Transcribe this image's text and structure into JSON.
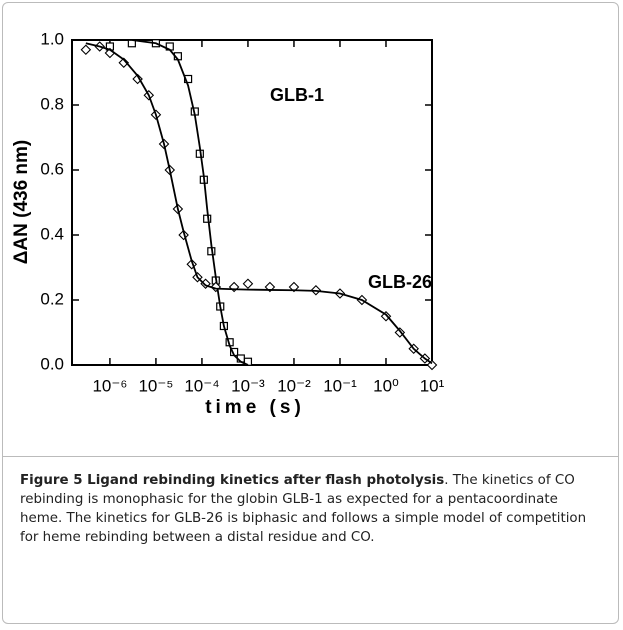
{
  "chart_data": {
    "type": "scatter",
    "xlabel": "time (s)",
    "ylabel": "ΔAN (436 nm)",
    "xscale": "log",
    "xlim": [
      1.5e-07,
      10
    ],
    "ylim": [
      0,
      1
    ],
    "xticks": [
      {
        "value": 1e-06,
        "label": "10⁻⁶"
      },
      {
        "value": 1e-05,
        "label": "10⁻⁵"
      },
      {
        "value": 0.0001,
        "label": "10⁻⁴"
      },
      {
        "value": 0.001,
        "label": "10⁻³"
      },
      {
        "value": 0.01,
        "label": "10⁻²"
      },
      {
        "value": 0.1,
        "label": "10⁻¹"
      },
      {
        "value": 1,
        "label": "10⁰"
      },
      {
        "value": 10,
        "label": "10¹"
      }
    ],
    "yticks": [
      {
        "value": 0,
        "label": "0.0"
      },
      0.2,
      0.4,
      0.6,
      0.8,
      {
        "value": 1,
        "label": "1.0"
      }
    ],
    "series": [
      {
        "name": "GLB-1",
        "marker": "square",
        "color": "#000000",
        "x": [
          1e-06,
          3e-06,
          1e-05,
          2e-05,
          3e-05,
          5e-05,
          7e-05,
          9e-05,
          0.00011,
          0.00013,
          0.00016,
          0.0002,
          0.00025,
          0.0003,
          0.0004,
          0.0005,
          0.0007,
          0.001
        ],
        "values": [
          0.98,
          0.99,
          0.99,
          0.98,
          0.95,
          0.88,
          0.78,
          0.65,
          0.57,
          0.45,
          0.35,
          0.26,
          0.18,
          0.12,
          0.07,
          0.04,
          0.02,
          0.01
        ],
        "fit": [
          1.0,
          1.0,
          0.99,
          0.97,
          0.94,
          0.86,
          0.77,
          0.67,
          0.58,
          0.48,
          0.37,
          0.27,
          0.18,
          0.12,
          0.06,
          0.03,
          0.01,
          0.0
        ]
      },
      {
        "name": "GLB-26",
        "marker": "diamond",
        "color": "#000000",
        "x": [
          3e-07,
          6e-07,
          1e-06,
          2e-06,
          4e-06,
          7e-06,
          1e-05,
          1.5e-05,
          2e-05,
          3e-05,
          4e-05,
          6e-05,
          8e-05,
          0.00012,
          0.0002,
          0.0005,
          0.001,
          0.003,
          0.01,
          0.03,
          0.1,
          0.3,
          1,
          2,
          4,
          7,
          10
        ],
        "values": [
          0.97,
          0.98,
          0.96,
          0.93,
          0.88,
          0.83,
          0.77,
          0.68,
          0.6,
          0.48,
          0.4,
          0.31,
          0.27,
          0.25,
          0.24,
          0.24,
          0.25,
          0.24,
          0.24,
          0.23,
          0.22,
          0.2,
          0.15,
          0.1,
          0.05,
          0.02,
          0.0
        ],
        "fit": [
          0.99,
          0.98,
          0.97,
          0.94,
          0.89,
          0.83,
          0.77,
          0.68,
          0.6,
          0.48,
          0.41,
          0.32,
          0.27,
          0.245,
          0.235,
          0.233,
          0.232,
          0.231,
          0.23,
          0.228,
          0.22,
          0.2,
          0.155,
          0.105,
          0.05,
          0.02,
          0.005
        ]
      }
    ]
  },
  "caption": {
    "title": "Figure 5 Ligand rebinding kinetics after flash photolysis",
    "text": ". The kinetics of CO rebinding is monophasic for the globin GLB-1 as expected for a pentacoordinate heme. The kinetics for GLB-26 is biphasic and follows a simple model of competition for heme rebinding between a distal residue and CO."
  }
}
